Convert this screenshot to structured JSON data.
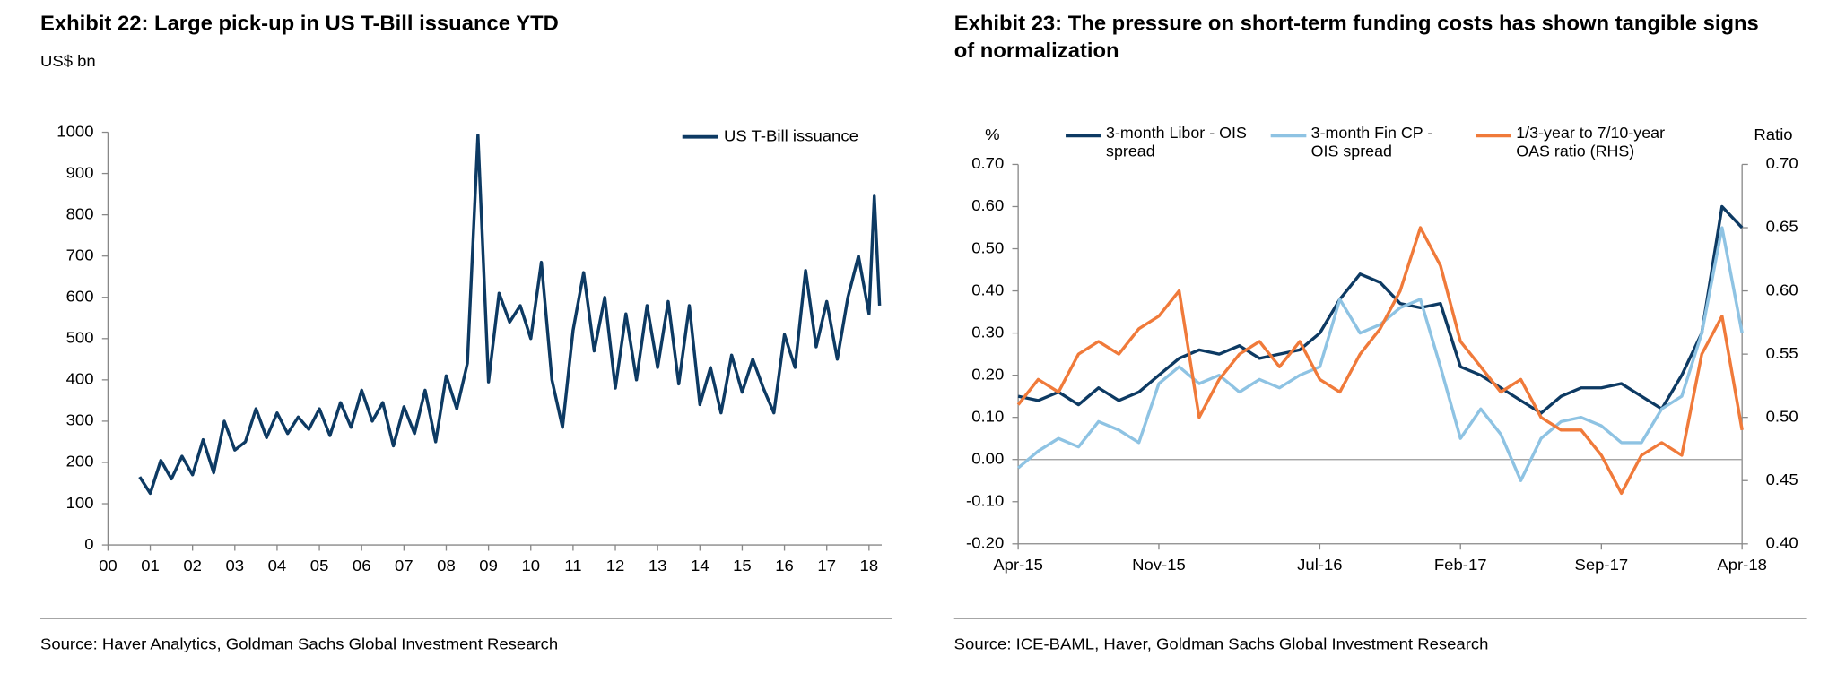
{
  "chart_data": [
    {
      "type": "line",
      "title": "Exhibit 22: Large pick-up in US T-Bill issuance YTD",
      "subtitle": "US$ bn",
      "source": "Source: Haver Analytics, Goldman Sachs Global Investment Research",
      "x": [
        2000.75,
        2001,
        2001.25,
        2001.5,
        2001.75,
        2002,
        2002.25,
        2002.5,
        2002.75,
        2003,
        2003.25,
        2003.5,
        2003.75,
        2004,
        2004.25,
        2004.5,
        2004.75,
        2005,
        2005.25,
        2005.5,
        2005.75,
        2006,
        2006.25,
        2006.5,
        2006.75,
        2007,
        2007.25,
        2007.5,
        2007.75,
        2008,
        2008.25,
        2008.5,
        2008.75,
        2009,
        2009.25,
        2009.5,
        2009.75,
        2010,
        2010.25,
        2010.5,
        2010.75,
        2011,
        2011.25,
        2011.5,
        2011.75,
        2012,
        2012.25,
        2012.5,
        2012.75,
        2013,
        2013.25,
        2013.5,
        2013.75,
        2014,
        2014.25,
        2014.5,
        2014.75,
        2015,
        2015.25,
        2015.5,
        2015.75,
        2016,
        2016.25,
        2016.5,
        2016.75,
        2017,
        2017.25,
        2017.5,
        2017.75,
        2018,
        2018.125,
        2018.25
      ],
      "series": [
        {
          "name": "US T-Bill issuance",
          "color": "#0d3a63",
          "values": [
            165,
            125,
            205,
            160,
            215,
            170,
            255,
            175,
            300,
            230,
            250,
            330,
            260,
            320,
            270,
            310,
            280,
            330,
            265,
            345,
            285,
            375,
            300,
            345,
            240,
            335,
            270,
            375,
            250,
            410,
            330,
            440,
            993,
            395,
            610,
            540,
            580,
            500,
            685,
            400,
            285,
            520,
            660,
            470,
            600,
            380,
            560,
            400,
            580,
            430,
            590,
            390,
            580,
            340,
            430,
            320,
            460,
            370,
            450,
            380,
            320,
            510,
            430,
            665,
            480,
            590,
            450,
            600,
            700,
            560,
            845,
            580
          ]
        }
      ],
      "xlim": [
        2000,
        2018.3
      ],
      "xticks": [
        {
          "value": 2000,
          "label": "00"
        },
        {
          "value": 2001,
          "label": "01"
        },
        {
          "value": 2002,
          "label": "02"
        },
        {
          "value": 2003,
          "label": "03"
        },
        {
          "value": 2004,
          "label": "04"
        },
        {
          "value": 2005,
          "label": "05"
        },
        {
          "value": 2006,
          "label": "06"
        },
        {
          "value": 2007,
          "label": "07"
        },
        {
          "value": 2008,
          "label": "08"
        },
        {
          "value": 2009,
          "label": "09"
        },
        {
          "value": 2010,
          "label": "10"
        },
        {
          "value": 2011,
          "label": "11"
        },
        {
          "value": 2012,
          "label": "12"
        },
        {
          "value": 2013,
          "label": "13"
        },
        {
          "value": 2014,
          "label": "14"
        },
        {
          "value": 2015,
          "label": "15"
        },
        {
          "value": 2016,
          "label": "16"
        },
        {
          "value": 2017,
          "label": "17"
        },
        {
          "value": 2018,
          "label": "18"
        }
      ],
      "ylim": [
        0,
        1000
      ],
      "yticks": [
        0,
        100,
        200,
        300,
        400,
        500,
        600,
        700,
        800,
        900,
        1000
      ],
      "grid": false,
      "legend": "upper right"
    },
    {
      "type": "line",
      "title": "Exhibit 23: The pressure on short-term funding costs has shown tangible signs of normalization",
      "source": "Source: ICE-BAML, Haver, Goldman Sachs Global Investment Research",
      "ylabel": "%",
      "y2label": "Ratio",
      "x": [
        2015.25,
        2015.333,
        2015.417,
        2015.5,
        2015.583,
        2015.667,
        2015.75,
        2015.833,
        2015.917,
        2016.0,
        2016.083,
        2016.167,
        2016.25,
        2016.333,
        2016.417,
        2016.5,
        2016.583,
        2016.667,
        2016.75,
        2016.833,
        2016.917,
        2017.0,
        2017.083,
        2017.167,
        2017.25,
        2017.333,
        2017.417,
        2017.5,
        2017.583,
        2017.667,
        2017.75,
        2017.833,
        2017.917,
        2018.0,
        2018.083,
        2018.167,
        2018.25
      ],
      "series": [
        {
          "name": "3-month Libor - OIS spread",
          "color": "#0d3a63",
          "values": [
            0.15,
            0.14,
            0.16,
            0.13,
            0.17,
            0.14,
            0.16,
            0.2,
            0.24,
            0.26,
            0.25,
            0.27,
            0.24,
            0.25,
            0.26,
            0.3,
            0.38,
            0.44,
            0.42,
            0.37,
            0.36,
            0.37,
            0.22,
            0.2,
            0.17,
            0.14,
            0.11,
            0.15,
            0.17,
            0.17,
            0.18,
            0.15,
            0.12,
            0.2,
            0.3,
            0.6,
            0.55
          ]
        },
        {
          "name": "3-month Fin CP - OIS spread",
          "color": "#8ec3e3",
          "values": [
            -0.02,
            0.02,
            0.05,
            0.03,
            0.09,
            0.07,
            0.04,
            0.18,
            0.22,
            0.18,
            0.2,
            0.16,
            0.19,
            0.17,
            0.2,
            0.22,
            0.38,
            0.3,
            0.32,
            0.36,
            0.38,
            0.22,
            0.05,
            0.12,
            0.06,
            -0.05,
            0.05,
            0.09,
            0.1,
            0.08,
            0.04,
            0.04,
            0.12,
            0.15,
            0.3,
            0.55,
            0.3
          ]
        },
        {
          "name": "1/3-year to 7/10-year OAS ratio (RHS)",
          "color": "#f07a3a",
          "axis": "y2",
          "values": [
            0.51,
            0.53,
            0.52,
            0.55,
            0.56,
            0.55,
            0.57,
            0.58,
            0.6,
            0.5,
            0.53,
            0.55,
            0.56,
            0.54,
            0.56,
            0.53,
            0.52,
            0.55,
            0.57,
            0.6,
            0.65,
            0.62,
            0.56,
            0.54,
            0.52,
            0.53,
            0.5,
            0.49,
            0.49,
            0.47,
            0.44,
            0.47,
            0.48,
            0.47,
            0.55,
            0.58,
            0.49
          ]
        }
      ],
      "xlim": [
        2015.25,
        2018.25
      ],
      "xticks": [
        {
          "value": 2015.25,
          "label": "Apr-15"
        },
        {
          "value": 2015.833,
          "label": "Nov-15"
        },
        {
          "value": 2016.5,
          "label": "Jul-16"
        },
        {
          "value": 2017.083,
          "label": "Feb-17"
        },
        {
          "value": 2017.667,
          "label": "Sep-17"
        },
        {
          "value": 2018.25,
          "label": "Apr-18"
        }
      ],
      "ylim": [
        -0.2,
        0.7
      ],
      "yticks": [
        {
          "value": -0.2,
          "label": "-0.20"
        },
        {
          "value": -0.1,
          "label": "-0.10"
        },
        {
          "value": 0,
          "label": "0.00"
        },
        {
          "value": 0.1,
          "label": "0.10"
        },
        {
          "value": 0.2,
          "label": "0.20"
        },
        {
          "value": 0.3,
          "label": "0.30"
        },
        {
          "value": 0.4,
          "label": "0.40"
        },
        {
          "value": 0.5,
          "label": "0.50"
        },
        {
          "value": 0.6,
          "label": "0.60"
        },
        {
          "value": 0.7,
          "label": "0.70"
        }
      ],
      "y2lim": [
        0.4,
        0.7
      ],
      "y2ticks": [
        {
          "value": 0.4,
          "label": "0.40"
        },
        {
          "value": 0.45,
          "label": "0.45"
        },
        {
          "value": 0.5,
          "label": "0.50"
        },
        {
          "value": 0.55,
          "label": "0.55"
        },
        {
          "value": 0.6,
          "label": "0.60"
        },
        {
          "value": 0.65,
          "label": "0.65"
        },
        {
          "value": 0.7,
          "label": "0.70"
        }
      ],
      "grid": false,
      "zero_line": true,
      "legend": "top"
    }
  ]
}
